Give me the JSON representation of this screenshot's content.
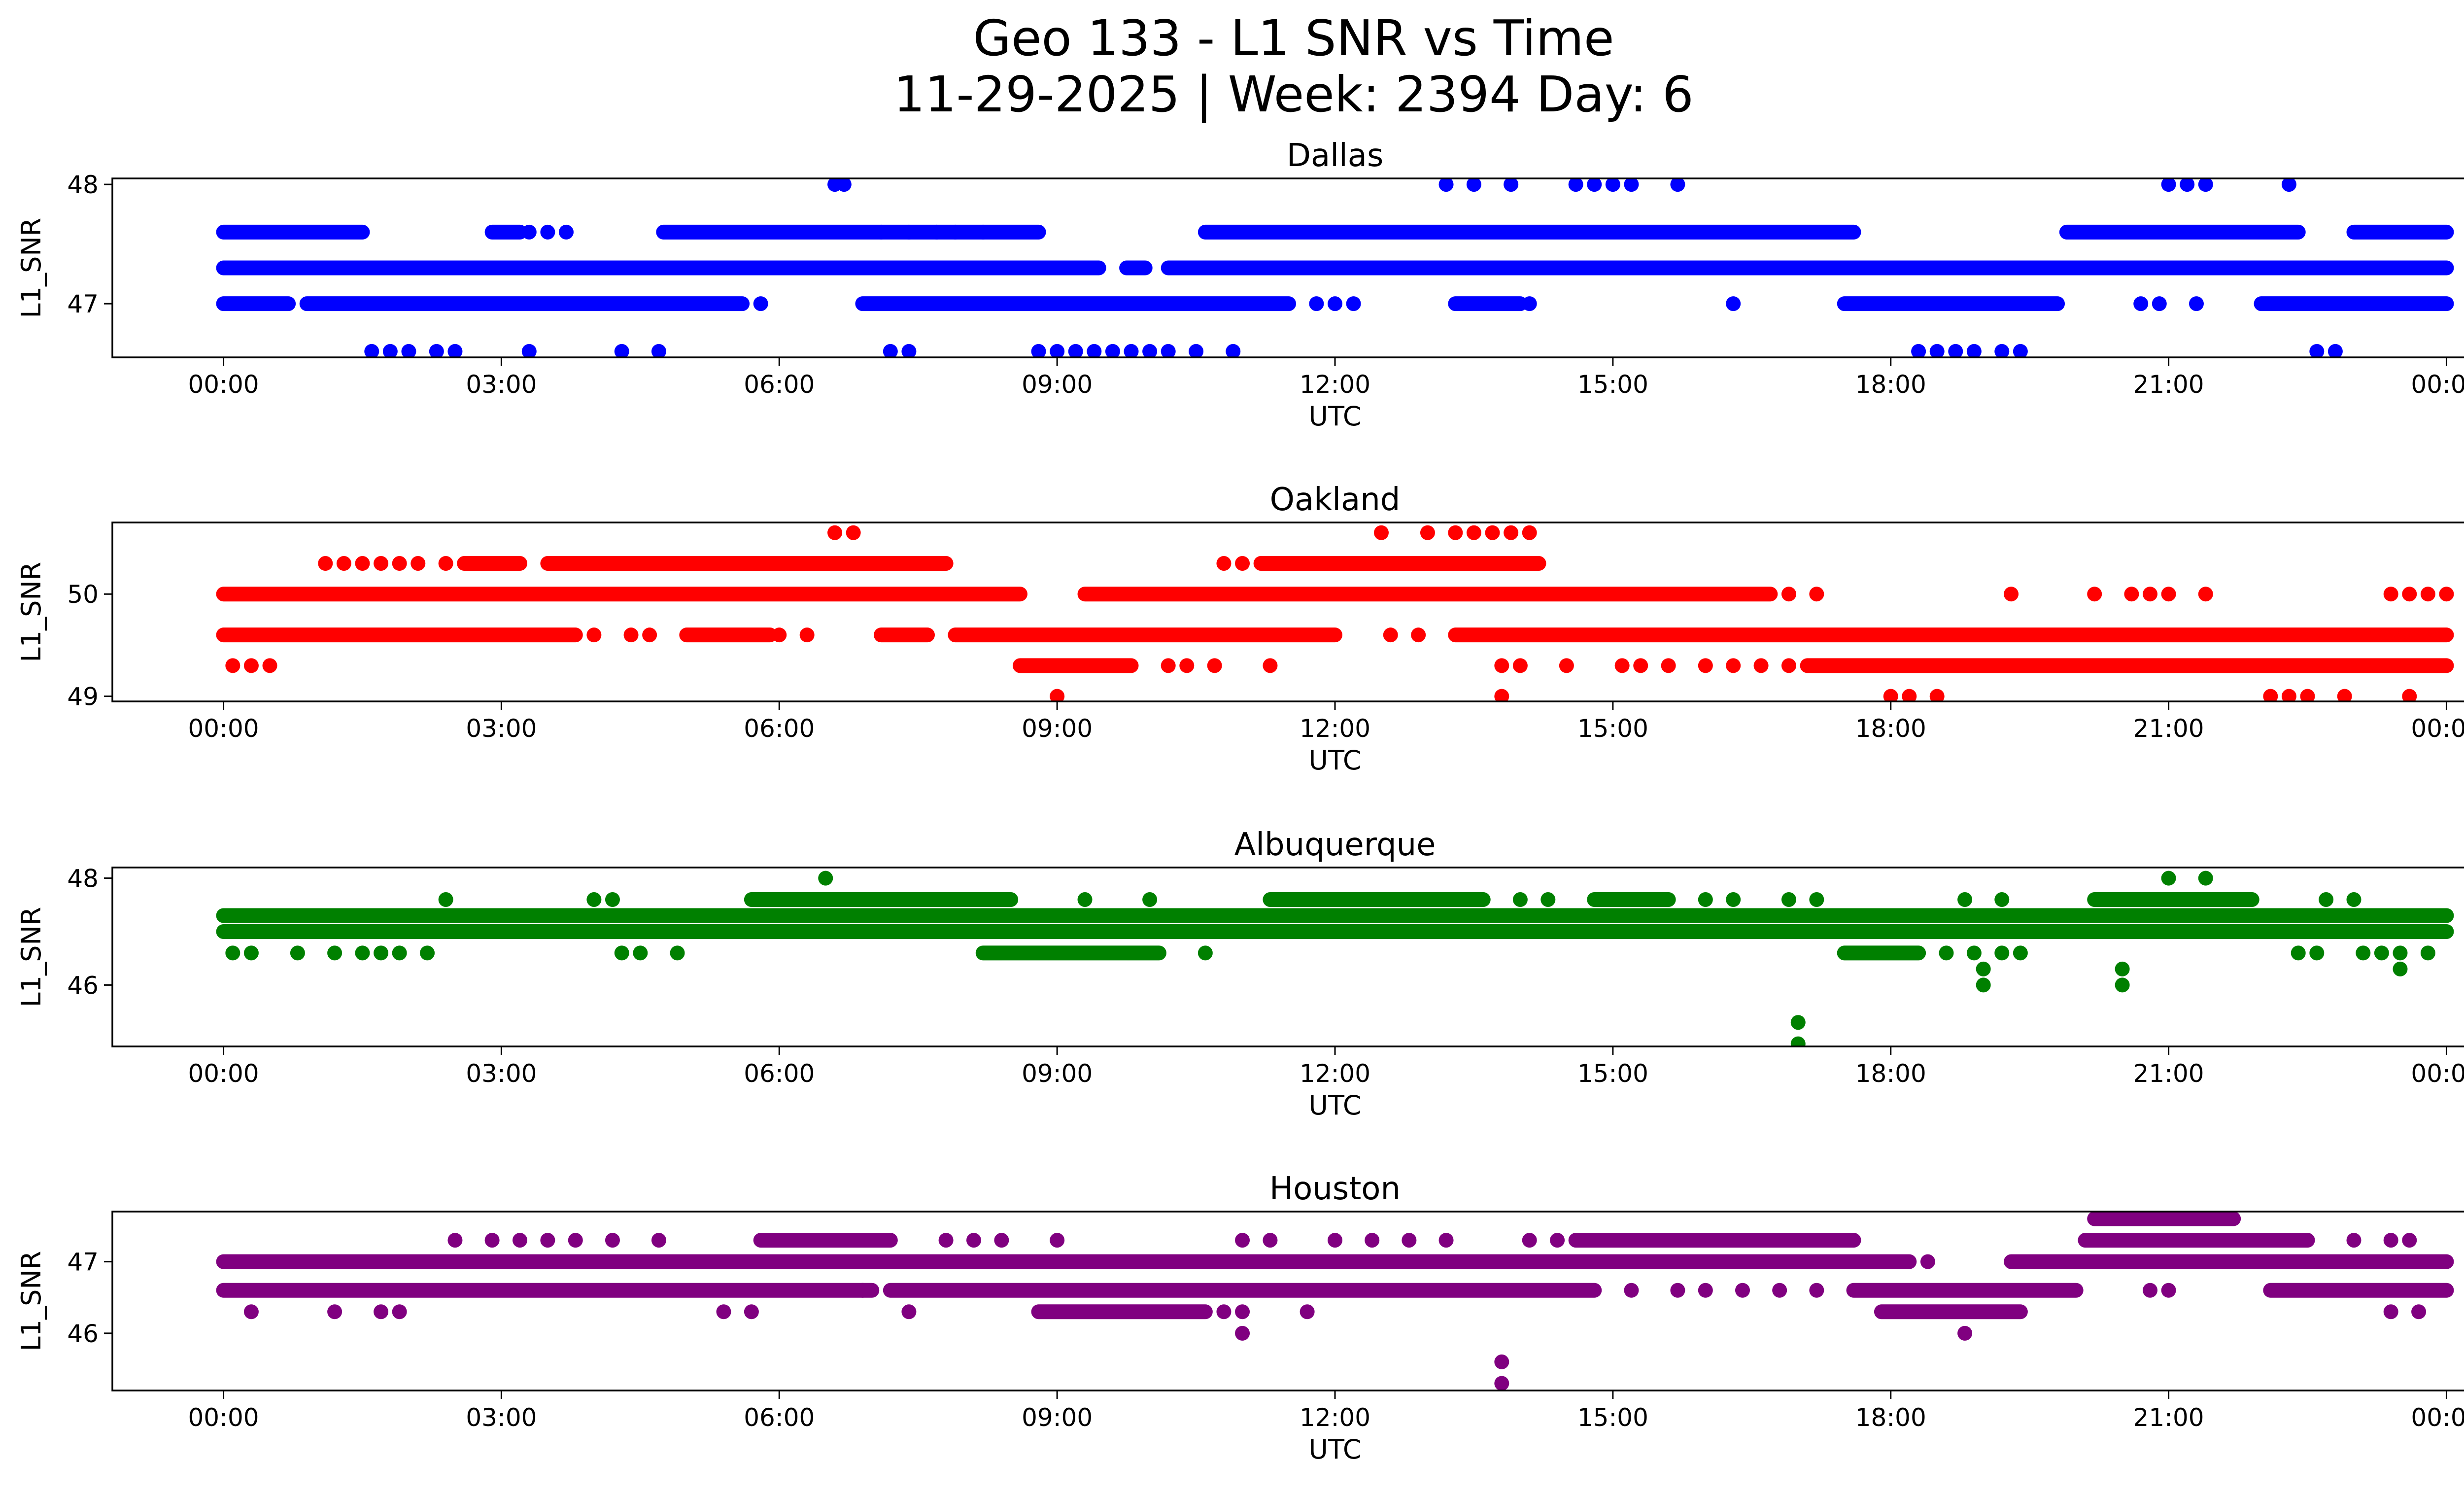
{
  "figure": {
    "title_line1": "Geo 133 - L1 SNR vs Time",
    "title_line2": "11-29-2025 | Week: 2394 Day: 6"
  },
  "chart_data": [
    {
      "type": "scatter",
      "title": "Dallas",
      "xlabel": "UTC",
      "ylabel": "L1_SNR",
      "color": "#0000ff",
      "xlim": [
        -1.2,
        25.2
      ],
      "ylim": [
        46.55,
        48.05
      ],
      "yticks": [
        47,
        48
      ],
      "ytick_labels": [
        "47",
        "48"
      ],
      "xticks": [
        0,
        3,
        6,
        9,
        12,
        15,
        18,
        21,
        24
      ],
      "xtick_labels": [
        "00:00",
        "03:00",
        "06:00",
        "09:00",
        "12:00",
        "15:00",
        "18:00",
        "21:00",
        "00:00"
      ],
      "bands": [
        {
          "y": 47.3,
          "segments": [
            [
              0.0,
              9.45
            ],
            [
              9.75,
              9.95
            ],
            [
              10.2,
              24.0
            ]
          ]
        },
        {
          "y": 47.6,
          "segments": [
            [
              0.0,
              1.5
            ],
            [
              2.9,
              3.2
            ],
            [
              4.75,
              8.8
            ],
            [
              10.6,
              17.6
            ],
            [
              19.9,
              22.4
            ],
            [
              23.0,
              24.0
            ]
          ]
        },
        {
          "y": 47.0,
          "segments": [
            [
              0.0,
              0.7
            ],
            [
              0.9,
              5.6
            ],
            [
              6.9,
              11.5
            ],
            [
              13.3,
              14.0
            ],
            [
              17.5,
              19.8
            ],
            [
              22.0,
              24.0
            ]
          ]
        }
      ],
      "points": [
        [
          3.3,
          47.6
        ],
        [
          3.5,
          47.6
        ],
        [
          3.7,
          47.6
        ],
        [
          7.1,
          47.6
        ],
        [
          7.4,
          47.6
        ],
        [
          7.7,
          47.6
        ],
        [
          7.9,
          47.6
        ],
        [
          8.2,
          47.6
        ],
        [
          5.8,
          47.0
        ],
        [
          11.8,
          47.0
        ],
        [
          12.0,
          47.0
        ],
        [
          12.2,
          47.0
        ],
        [
          14.1,
          47.0
        ],
        [
          16.3,
          47.0
        ],
        [
          20.7,
          47.0
        ],
        [
          20.9,
          47.0
        ],
        [
          21.3,
          47.0
        ],
        [
          6.6,
          48.0
        ],
        [
          6.7,
          48.0
        ],
        [
          13.2,
          48.0
        ],
        [
          13.5,
          48.0
        ],
        [
          13.9,
          48.0
        ],
        [
          14.6,
          48.0
        ],
        [
          14.8,
          48.0
        ],
        [
          15.0,
          48.0
        ],
        [
          15.2,
          48.0
        ],
        [
          15.7,
          48.0
        ],
        [
          21.0,
          48.0
        ],
        [
          21.2,
          48.0
        ],
        [
          21.4,
          48.0
        ],
        [
          22.3,
          48.0
        ],
        [
          1.6,
          46.6
        ],
        [
          1.8,
          46.6
        ],
        [
          2.0,
          46.6
        ],
        [
          2.3,
          46.6
        ],
        [
          2.5,
          46.6
        ],
        [
          3.3,
          46.6
        ],
        [
          4.3,
          46.6
        ],
        [
          4.7,
          46.6
        ],
        [
          7.2,
          46.6
        ],
        [
          7.4,
          46.6
        ],
        [
          8.8,
          46.6
        ],
        [
          9.0,
          46.6
        ],
        [
          9.2,
          46.6
        ],
        [
          9.4,
          46.6
        ],
        [
          9.6,
          46.6
        ],
        [
          9.8,
          46.6
        ],
        [
          10.0,
          46.6
        ],
        [
          10.2,
          46.6
        ],
        [
          10.5,
          46.6
        ],
        [
          10.9,
          46.6
        ],
        [
          18.3,
          46.6
        ],
        [
          18.5,
          46.6
        ],
        [
          18.7,
          46.6
        ],
        [
          18.9,
          46.6
        ],
        [
          19.2,
          46.6
        ],
        [
          19.4,
          46.6
        ],
        [
          22.6,
          46.6
        ],
        [
          22.8,
          46.6
        ]
      ]
    },
    {
      "type": "scatter",
      "title": "Oakland",
      "xlabel": "UTC",
      "ylabel": "L1_SNR",
      "color": "#ff0000",
      "xlim": [
        -1.2,
        25.2
      ],
      "ylim": [
        48.95,
        50.7
      ],
      "yticks": [
        49,
        50
      ],
      "ytick_labels": [
        "49",
        "50"
      ],
      "xticks": [
        0,
        3,
        6,
        9,
        12,
        15,
        18,
        21,
        24
      ],
      "xtick_labels": [
        "00:00",
        "03:00",
        "06:00",
        "09:00",
        "12:00",
        "15:00",
        "18:00",
        "21:00",
        "00:00"
      ],
      "bands": [
        {
          "y": 50.0,
          "segments": [
            [
              0.0,
              8.6
            ],
            [
              9.3,
              16.7
            ]
          ]
        },
        {
          "y": 49.6,
          "segments": [
            [
              0.0,
              3.8
            ],
            [
              5.0,
              5.9
            ],
            [
              7.1,
              7.6
            ],
            [
              7.9,
              12.0
            ],
            [
              13.3,
              24.0
            ]
          ]
        },
        {
          "y": 49.3,
          "segments": [
            [
              8.6,
              9.8
            ],
            [
              17.1,
              24.0
            ]
          ]
        },
        {
          "y": 50.3,
          "segments": [
            [
              2.6,
              3.2
            ],
            [
              3.5,
              7.8
            ],
            [
              11.2,
              14.2
            ]
          ]
        }
      ],
      "points": [
        [
          1.1,
          50.3
        ],
        [
          1.3,
          50.3
        ],
        [
          1.5,
          50.3
        ],
        [
          1.7,
          50.3
        ],
        [
          1.9,
          50.3
        ],
        [
          2.1,
          50.3
        ],
        [
          2.4,
          50.3
        ],
        [
          10.8,
          50.3
        ],
        [
          11.0,
          50.3
        ],
        [
          11.5,
          50.3
        ],
        [
          6.6,
          50.6
        ],
        [
          6.8,
          50.6
        ],
        [
          12.5,
          50.6
        ],
        [
          13.0,
          50.6
        ],
        [
          13.3,
          50.6
        ],
        [
          13.5,
          50.6
        ],
        [
          13.7,
          50.6
        ],
        [
          13.9,
          50.6
        ],
        [
          14.1,
          50.6
        ],
        [
          16.9,
          50.0
        ],
        [
          17.2,
          50.0
        ],
        [
          19.3,
          50.0
        ],
        [
          20.2,
          50.0
        ],
        [
          20.6,
          50.0
        ],
        [
          20.8,
          50.0
        ],
        [
          21.0,
          50.0
        ],
        [
          21.4,
          50.0
        ],
        [
          23.4,
          50.0
        ],
        [
          23.6,
          50.0
        ],
        [
          23.8,
          50.0
        ],
        [
          24.0,
          50.0
        ],
        [
          4.0,
          49.6
        ],
        [
          4.4,
          49.6
        ],
        [
          4.6,
          49.6
        ],
        [
          6.0,
          49.6
        ],
        [
          6.3,
          49.6
        ],
        [
          12.6,
          49.6
        ],
        [
          12.9,
          49.6
        ],
        [
          0.1,
          49.3
        ],
        [
          0.3,
          49.3
        ],
        [
          0.5,
          49.3
        ],
        [
          10.2,
          49.3
        ],
        [
          10.4,
          49.3
        ],
        [
          10.7,
          49.3
        ],
        [
          11.3,
          49.3
        ],
        [
          13.8,
          49.3
        ],
        [
          14.0,
          49.3
        ],
        [
          14.5,
          49.3
        ],
        [
          15.1,
          49.3
        ],
        [
          15.3,
          49.3
        ],
        [
          15.6,
          49.3
        ],
        [
          16.0,
          49.3
        ],
        [
          16.3,
          49.3
        ],
        [
          16.6,
          49.3
        ],
        [
          16.9,
          49.3
        ],
        [
          9.0,
          49.0
        ],
        [
          13.8,
          49.0
        ],
        [
          18.0,
          49.0
        ],
        [
          18.2,
          49.0
        ],
        [
          18.5,
          49.0
        ],
        [
          22.1,
          49.0
        ],
        [
          22.3,
          49.0
        ],
        [
          22.5,
          49.0
        ],
        [
          22.9,
          49.0
        ],
        [
          23.6,
          49.0
        ]
      ]
    },
    {
      "type": "scatter",
      "title": "Albuquerque",
      "xlabel": "UTC",
      "ylabel": "L1_SNR",
      "color": "#008000",
      "xlim": [
        -1.2,
        25.2
      ],
      "ylim": [
        44.85,
        48.2
      ],
      "yticks": [
        46,
        48
      ],
      "ytick_labels": [
        "46",
        "48"
      ],
      "xticks": [
        0,
        3,
        6,
        9,
        12,
        15,
        18,
        21,
        24
      ],
      "xtick_labels": [
        "00:00",
        "03:00",
        "06:00",
        "09:00",
        "12:00",
        "15:00",
        "18:00",
        "21:00",
        "00:00"
      ],
      "bands": [
        {
          "y": 47.3,
          "segments": [
            [
              0.0,
              24.0
            ]
          ]
        },
        {
          "y": 47.0,
          "segments": [
            [
              0.0,
              24.0
            ]
          ]
        },
        {
          "y": 47.6,
          "segments": [
            [
              5.7,
              8.5
            ],
            [
              11.3,
              13.6
            ],
            [
              14.8,
              15.6
            ],
            [
              20.2,
              21.9
            ]
          ]
        },
        {
          "y": 46.6,
          "segments": [
            [
              8.2,
              10.1
            ],
            [
              17.5,
              18.3
            ]
          ]
        }
      ],
      "points": [
        [
          0.1,
          46.6
        ],
        [
          0.3,
          46.6
        ],
        [
          0.8,
          46.6
        ],
        [
          1.2,
          46.6
        ],
        [
          1.5,
          46.6
        ],
        [
          1.7,
          46.6
        ],
        [
          1.9,
          46.6
        ],
        [
          2.2,
          46.6
        ],
        [
          4.3,
          46.6
        ],
        [
          4.5,
          46.6
        ],
        [
          4.9,
          46.6
        ],
        [
          10.6,
          46.6
        ],
        [
          18.6,
          46.6
        ],
        [
          18.9,
          46.6
        ],
        [
          19.2,
          46.6
        ],
        [
          19.4,
          46.6
        ],
        [
          22.4,
          46.6
        ],
        [
          22.6,
          46.6
        ],
        [
          23.1,
          46.6
        ],
        [
          23.3,
          46.6
        ],
        [
          23.5,
          46.6
        ],
        [
          23.8,
          46.6
        ],
        [
          2.4,
          47.6
        ],
        [
          4.0,
          47.6
        ],
        [
          4.2,
          47.6
        ],
        [
          9.3,
          47.6
        ],
        [
          10.0,
          47.6
        ],
        [
          14.0,
          47.6
        ],
        [
          14.3,
          47.6
        ],
        [
          16.0,
          47.6
        ],
        [
          16.3,
          47.6
        ],
        [
          16.9,
          47.6
        ],
        [
          17.2,
          47.6
        ],
        [
          18.8,
          47.6
        ],
        [
          19.2,
          47.6
        ],
        [
          22.7,
          47.6
        ],
        [
          23.0,
          47.6
        ],
        [
          6.5,
          48.0
        ],
        [
          21.0,
          48.0
        ],
        [
          21.4,
          48.0
        ],
        [
          19.0,
          46.3
        ],
        [
          20.5,
          46.3
        ],
        [
          23.5,
          46.3
        ],
        [
          19.0,
          46.0
        ],
        [
          20.5,
          46.0
        ],
        [
          17.0,
          45.3
        ],
        [
          17.0,
          44.9
        ]
      ]
    },
    {
      "type": "scatter",
      "title": "Houston",
      "xlabel": "UTC",
      "ylabel": "L1_SNR",
      "color": "#800080",
      "xlim": [
        -1.2,
        25.2
      ],
      "ylim": [
        45.2,
        47.7
      ],
      "yticks": [
        46,
        47
      ],
      "ytick_labels": [
        "46",
        "47"
      ],
      "xticks": [
        0,
        3,
        6,
        9,
        12,
        15,
        18,
        21,
        24
      ],
      "xtick_labels": [
        "00:00",
        "03:00",
        "06:00",
        "09:00",
        "12:00",
        "15:00",
        "18:00",
        "21:00",
        "00:00"
      ],
      "bands": [
        {
          "y": 47.0,
          "segments": [
            [
              0.0,
              18.2
            ],
            [
              19.3,
              24.0
            ]
          ]
        },
        {
          "y": 46.6,
          "segments": [
            [
              0.0,
              7.0
            ],
            [
              7.2,
              14.8
            ],
            [
              17.6,
              20.0
            ],
            [
              22.1,
              24.0
            ]
          ]
        },
        {
          "y": 47.3,
          "segments": [
            [
              5.8,
              7.2
            ],
            [
              14.6,
              17.6
            ],
            [
              20.1,
              22.5
            ]
          ]
        },
        {
          "y": 46.3,
          "segments": [
            [
              8.8,
              10.6
            ],
            [
              17.9,
              19.4
            ]
          ]
        },
        {
          "y": 47.6,
          "segments": [
            [
              20.2,
              21.7
            ]
          ]
        }
      ],
      "points": [
        [
          2.5,
          47.3
        ],
        [
          2.9,
          47.3
        ],
        [
          3.2,
          47.3
        ],
        [
          3.5,
          47.3
        ],
        [
          3.8,
          47.3
        ],
        [
          4.2,
          47.3
        ],
        [
          4.7,
          47.3
        ],
        [
          7.8,
          47.3
        ],
        [
          8.1,
          47.3
        ],
        [
          8.4,
          47.3
        ],
        [
          9.0,
          47.3
        ],
        [
          11.0,
          47.3
        ],
        [
          11.3,
          47.3
        ],
        [
          12.0,
          47.3
        ],
        [
          12.4,
          47.3
        ],
        [
          12.8,
          47.3
        ],
        [
          13.2,
          47.3
        ],
        [
          14.1,
          47.3
        ],
        [
          14.4,
          47.3
        ],
        [
          23.0,
          47.3
        ],
        [
          23.4,
          47.3
        ],
        [
          23.6,
          47.3
        ],
        [
          0.3,
          46.3
        ],
        [
          1.2,
          46.3
        ],
        [
          1.7,
          46.3
        ],
        [
          1.9,
          46.3
        ],
        [
          5.4,
          46.3
        ],
        [
          5.7,
          46.3
        ],
        [
          7.4,
          46.3
        ],
        [
          10.8,
          46.3
        ],
        [
          11.0,
          46.3
        ],
        [
          11.7,
          46.3
        ],
        [
          23.4,
          46.3
        ],
        [
          23.7,
          46.3
        ],
        [
          15.2,
          46.6
        ],
        [
          15.7,
          46.6
        ],
        [
          16.0,
          46.6
        ],
        [
          16.4,
          46.6
        ],
        [
          16.8,
          46.6
        ],
        [
          17.2,
          46.6
        ],
        [
          20.8,
          46.6
        ],
        [
          21.0,
          46.6
        ],
        [
          18.4,
          47.0
        ],
        [
          6.9,
          46.6
        ],
        [
          11.0,
          46.0
        ],
        [
          18.8,
          46.0
        ],
        [
          13.8,
          45.6
        ],
        [
          13.8,
          45.3
        ]
      ]
    }
  ]
}
